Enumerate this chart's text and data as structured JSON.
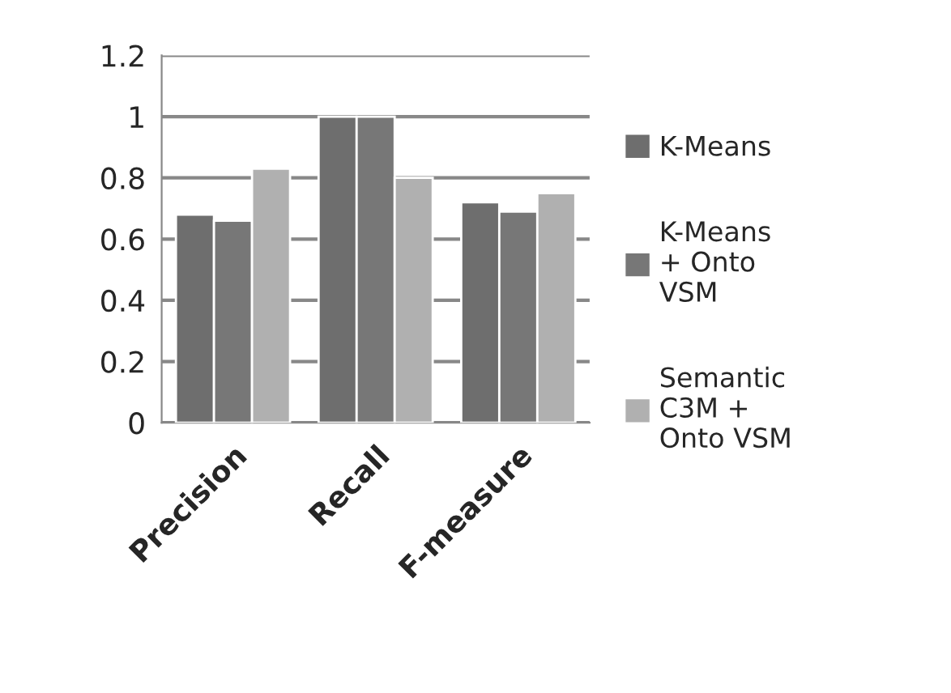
{
  "chart_data": {
    "type": "bar",
    "categories": [
      "Precision",
      "Recall",
      "F-measure"
    ],
    "series": [
      {
        "name": "K-Means",
        "color": "#6e6e6e",
        "values": [
          0.68,
          1.0,
          0.72
        ]
      },
      {
        "name": "K-Means\n+ Onto\nVSM",
        "color": "#777777",
        "values": [
          0.66,
          1.0,
          0.69
        ]
      },
      {
        "name": "Semantic\nC3M +\nOnto VSM",
        "color": "#b0b0b0",
        "values": [
          0.83,
          0.8,
          0.75
        ]
      }
    ],
    "ylim": [
      0,
      1.2
    ],
    "yticks": [
      0,
      0.2,
      0.4,
      0.6,
      0.8,
      1,
      1.2
    ],
    "grid": "y",
    "legend": "right"
  }
}
